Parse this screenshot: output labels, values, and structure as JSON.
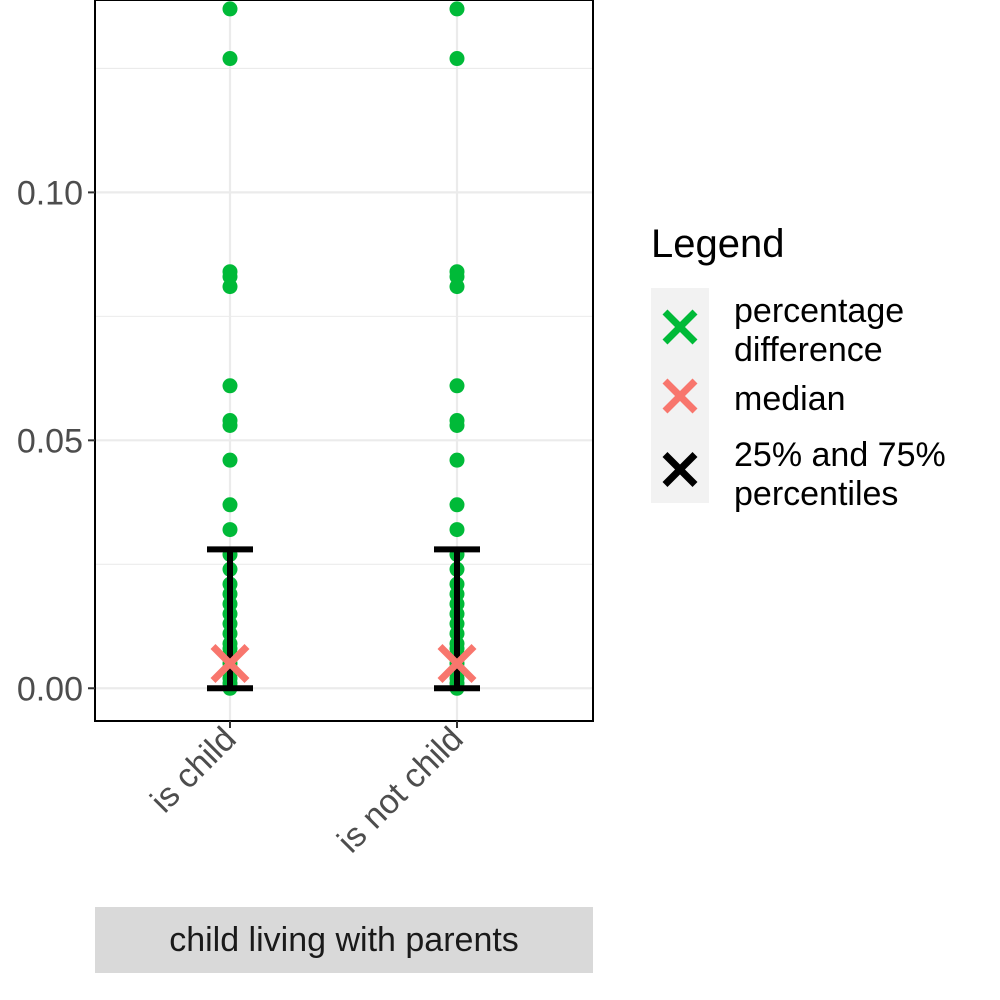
{
  "chart_data": {
    "type": "scatter",
    "title": "",
    "xlabel": "",
    "ylabel": "",
    "categories": [
      "is child",
      "is not child"
    ],
    "ylim": [
      -0.0066,
      0.1388
    ],
    "y_ticks": [
      0.0,
      0.05,
      0.1
    ],
    "y_tick_labels": [
      "0.00",
      "0.05",
      "0.10"
    ],
    "grid": true,
    "facet_strip": {
      "position": "bottom",
      "label": "child living with parents"
    },
    "series": [
      {
        "name": "percentage difference",
        "marker": "point",
        "color": "#00BA38",
        "values": [
          [
            0.137,
            0.127,
            0.084,
            0.083,
            0.081,
            0.061,
            0.054,
            0.053,
            0.046,
            0.037,
            0.032,
            0.027,
            0.024,
            0.021,
            0.019,
            0.017,
            0.015,
            0.013,
            0.011,
            0.009,
            0.008,
            0.007,
            0.006,
            0.005,
            0.004,
            0.003,
            0.002,
            0.001,
            0.0
          ],
          [
            0.137,
            0.127,
            0.084,
            0.083,
            0.081,
            0.061,
            0.054,
            0.053,
            0.046,
            0.037,
            0.032,
            0.027,
            0.024,
            0.021,
            0.019,
            0.017,
            0.015,
            0.013,
            0.011,
            0.009,
            0.008,
            0.007,
            0.006,
            0.005,
            0.004,
            0.003,
            0.002,
            0.001,
            0.0
          ]
        ]
      },
      {
        "name": "median",
        "marker": "x",
        "color": "#F8766D",
        "values": [
          0.005,
          0.005
        ]
      },
      {
        "name": "25% and 75% percentiles",
        "marker": "errorbar",
        "color": "#000000",
        "low": [
          0.0,
          0.0
        ],
        "high": [
          0.028,
          0.028
        ]
      }
    ],
    "legend": {
      "title": "Legend",
      "placement": "right",
      "items": [
        {
          "lines": [
            "percentage",
            "difference"
          ],
          "color": "#00BA38"
        },
        {
          "lines": [
            "median"
          ],
          "color": "#F8766D"
        },
        {
          "lines": [
            "25% and 75%",
            "percentiles"
          ],
          "color": "#000000"
        }
      ]
    }
  },
  "colors": {
    "panel_border": "#000000",
    "grid": "#ebebeb",
    "legend_key_bg": "#f2f2f2",
    "strip_bg": "#d9d9d9",
    "tick_text": "#4d4d4d"
  }
}
